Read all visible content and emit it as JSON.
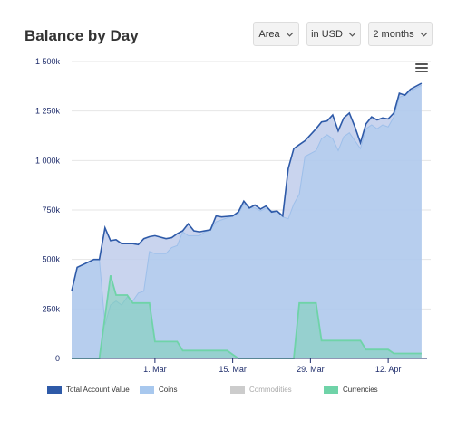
{
  "header": {
    "title": "Balance by Day",
    "dropdowns": [
      {
        "label": "Area"
      },
      {
        "label": "in USD"
      },
      {
        "label": "2 months"
      }
    ]
  },
  "colors": {
    "total_line": "#2E5AA8",
    "total_fill": "#BFCDEB",
    "coins": "#A8C8EE",
    "commodities": "#CCCCCC",
    "currencies": "#6FD3A8",
    "axis_label": "#1F2D6B",
    "grid": "#E6E6E6"
  },
  "icons": {
    "menu": "hamburger-menu-icon"
  },
  "chart_data": {
    "type": "area",
    "title": "Balance by Day",
    "x_range": [
      "2021-02-14",
      "2021-04-19"
    ],
    "ylim": [
      0,
      1500000
    ],
    "grid": true,
    "legend_position": "bottom",
    "y_ticks": [
      {
        "value": 0,
        "label": "0"
      },
      {
        "value": 250000,
        "label": "250k"
      },
      {
        "value": 500000,
        "label": "500k"
      },
      {
        "value": 750000,
        "label": "750k"
      },
      {
        "value": 1000000,
        "label": "1 000k"
      },
      {
        "value": 1250000,
        "label": "1 250k"
      },
      {
        "value": 1500000,
        "label": "1 500k"
      }
    ],
    "x_ticks": [
      {
        "date": "2021-03-01",
        "label": "1. Mar"
      },
      {
        "date": "2021-03-15",
        "label": "15. Mar"
      },
      {
        "date": "2021-03-29",
        "label": "29. Mar"
      },
      {
        "date": "2021-04-12",
        "label": "12. Apr"
      }
    ],
    "series": [
      {
        "name": "Total Account Value",
        "visible": true,
        "points": [
          [
            "2021-02-14",
            340000
          ],
          [
            "2021-02-15",
            460000
          ],
          [
            "2021-02-18",
            500000
          ],
          [
            "2021-02-19",
            500000
          ],
          [
            "2021-02-20",
            660000
          ],
          [
            "2021-02-21",
            595000
          ],
          [
            "2021-02-22",
            600000
          ],
          [
            "2021-02-23",
            580000
          ],
          [
            "2021-02-25",
            580000
          ],
          [
            "2021-02-26",
            575000
          ],
          [
            "2021-02-27",
            605000
          ],
          [
            "2021-02-28",
            615000
          ],
          [
            "2021-03-01",
            620000
          ],
          [
            "2021-03-03",
            605000
          ],
          [
            "2021-03-04",
            610000
          ],
          [
            "2021-03-05",
            630000
          ],
          [
            "2021-03-06",
            645000
          ],
          [
            "2021-03-07",
            680000
          ],
          [
            "2021-03-08",
            645000
          ],
          [
            "2021-03-09",
            640000
          ],
          [
            "2021-03-11",
            650000
          ],
          [
            "2021-03-12",
            720000
          ],
          [
            "2021-03-13",
            715000
          ],
          [
            "2021-03-15",
            720000
          ],
          [
            "2021-03-16",
            740000
          ],
          [
            "2021-03-17",
            795000
          ],
          [
            "2021-03-18",
            760000
          ],
          [
            "2021-03-19",
            775000
          ],
          [
            "2021-03-20",
            755000
          ],
          [
            "2021-03-21",
            770000
          ],
          [
            "2021-03-22",
            740000
          ],
          [
            "2021-03-23",
            745000
          ],
          [
            "2021-03-24",
            720000
          ],
          [
            "2021-03-25",
            960000
          ],
          [
            "2021-03-26",
            1060000
          ],
          [
            "2021-03-27",
            1080000
          ],
          [
            "2021-03-28",
            1100000
          ],
          [
            "2021-03-30",
            1160000
          ],
          [
            "2021-03-31",
            1195000
          ],
          [
            "2021-04-01",
            1200000
          ],
          [
            "2021-04-02",
            1230000
          ],
          [
            "2021-04-03",
            1150000
          ],
          [
            "2021-04-04",
            1215000
          ],
          [
            "2021-04-05",
            1240000
          ],
          [
            "2021-04-06",
            1170000
          ],
          [
            "2021-04-07",
            1090000
          ],
          [
            "2021-04-08",
            1185000
          ],
          [
            "2021-04-09",
            1220000
          ],
          [
            "2021-04-10",
            1205000
          ],
          [
            "2021-04-11",
            1215000
          ],
          [
            "2021-04-12",
            1210000
          ],
          [
            "2021-04-13",
            1240000
          ],
          [
            "2021-04-14",
            1340000
          ],
          [
            "2021-04-15",
            1330000
          ],
          [
            "2021-04-16",
            1360000
          ],
          [
            "2021-04-18",
            1390000
          ]
        ]
      },
      {
        "name": "Coins",
        "visible": true,
        "points": [
          [
            "2021-02-14",
            340000
          ],
          [
            "2021-02-15",
            460000
          ],
          [
            "2021-02-18",
            500000
          ],
          [
            "2021-02-19",
            500000
          ],
          [
            "2021-02-20",
            170000
          ],
          [
            "2021-02-21",
            270000
          ],
          [
            "2021-02-22",
            290000
          ],
          [
            "2021-02-23",
            270000
          ],
          [
            "2021-02-24",
            310000
          ],
          [
            "2021-02-25",
            290000
          ],
          [
            "2021-02-26",
            330000
          ],
          [
            "2021-02-27",
            340000
          ],
          [
            "2021-02-28",
            540000
          ],
          [
            "2021-03-01",
            530000
          ],
          [
            "2021-03-03",
            530000
          ],
          [
            "2021-03-04",
            560000
          ],
          [
            "2021-03-05",
            570000
          ],
          [
            "2021-03-06",
            640000
          ],
          [
            "2021-03-07",
            620000
          ],
          [
            "2021-03-08",
            620000
          ],
          [
            "2021-03-09",
            620000
          ],
          [
            "2021-03-10",
            640000
          ],
          [
            "2021-03-11",
            650000
          ],
          [
            "2021-03-12",
            690000
          ],
          [
            "2021-03-13",
            700000
          ],
          [
            "2021-03-15",
            720000
          ],
          [
            "2021-03-16",
            730000
          ],
          [
            "2021-03-17",
            780000
          ],
          [
            "2021-03-18",
            760000
          ],
          [
            "2021-03-19",
            760000
          ],
          [
            "2021-03-20",
            745000
          ],
          [
            "2021-03-21",
            760000
          ],
          [
            "2021-03-22",
            745000
          ],
          [
            "2021-03-23",
            745000
          ],
          [
            "2021-03-24",
            715000
          ],
          [
            "2021-03-25",
            705000
          ],
          [
            "2021-03-26",
            780000
          ],
          [
            "2021-03-27",
            830000
          ],
          [
            "2021-03-28",
            1020000
          ],
          [
            "2021-03-30",
            1050000
          ],
          [
            "2021-03-31",
            1110000
          ],
          [
            "2021-04-01",
            1130000
          ],
          [
            "2021-04-02",
            1110000
          ],
          [
            "2021-04-03",
            1050000
          ],
          [
            "2021-04-04",
            1120000
          ],
          [
            "2021-04-05",
            1140000
          ],
          [
            "2021-04-06",
            1100000
          ],
          [
            "2021-04-07",
            1060000
          ],
          [
            "2021-04-08",
            1160000
          ],
          [
            "2021-04-09",
            1180000
          ],
          [
            "2021-04-10",
            1160000
          ],
          [
            "2021-04-11",
            1180000
          ],
          [
            "2021-04-12",
            1170000
          ],
          [
            "2021-04-13",
            1220000
          ],
          [
            "2021-04-14",
            1320000
          ],
          [
            "2021-04-15",
            1330000
          ],
          [
            "2021-04-16",
            1350000
          ],
          [
            "2021-04-18",
            1380000
          ]
        ]
      },
      {
        "name": "Commodities",
        "visible": false,
        "points": []
      },
      {
        "name": "Currencies",
        "visible": true,
        "points": [
          [
            "2021-02-14",
            0
          ],
          [
            "2021-02-19",
            0
          ],
          [
            "2021-02-20",
            210000
          ],
          [
            "2021-02-21",
            420000
          ],
          [
            "2021-02-22",
            320000
          ],
          [
            "2021-02-24",
            320000
          ],
          [
            "2021-02-25",
            280000
          ],
          [
            "2021-02-28",
            280000
          ],
          [
            "2021-03-01",
            85000
          ],
          [
            "2021-03-05",
            85000
          ],
          [
            "2021-03-06",
            40000
          ],
          [
            "2021-03-13",
            40000
          ],
          [
            "2021-03-14",
            40000
          ],
          [
            "2021-03-15",
            20000
          ],
          [
            "2021-03-16",
            0
          ],
          [
            "2021-03-26",
            0
          ],
          [
            "2021-03-27",
            280000
          ],
          [
            "2021-03-30",
            280000
          ],
          [
            "2021-03-31",
            90000
          ],
          [
            "2021-04-07",
            90000
          ],
          [
            "2021-04-08",
            45000
          ],
          [
            "2021-04-12",
            45000
          ],
          [
            "2021-04-13",
            25000
          ],
          [
            "2021-04-18",
            25000
          ]
        ]
      }
    ]
  }
}
